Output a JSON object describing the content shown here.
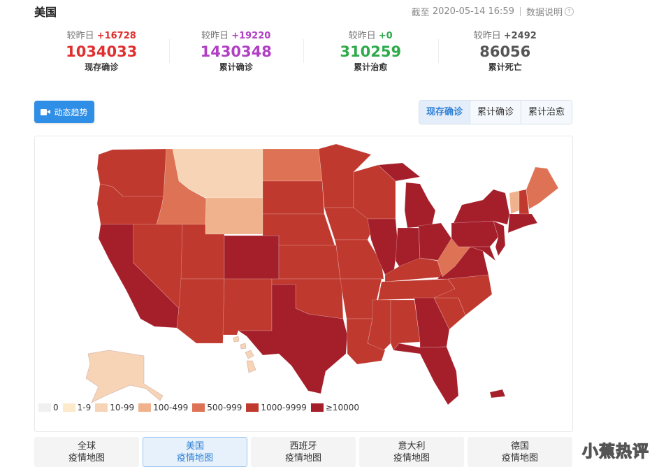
{
  "header": {
    "title": "美国",
    "update_prefix": "截至",
    "update_time": "2020-05-14 16:59",
    "data_note": "数据说明",
    "help_icon": "?"
  },
  "stats": [
    {
      "delta_label": "较昨日",
      "delta": "+16728",
      "value": "1034033",
      "label": "现存确诊",
      "color": "#e02f2f"
    },
    {
      "delta_label": "较昨日",
      "delta": "+19220",
      "value": "1430348",
      "label": "累计确诊",
      "color": "#b03fc4"
    },
    {
      "delta_label": "较昨日",
      "delta": "+0",
      "value": "310259",
      "label": "累计治愈",
      "color": "#2eaa4b"
    },
    {
      "delta_label": "较昨日",
      "delta": "+2492",
      "value": "86056",
      "label": "累计死亡",
      "color": "#555555"
    }
  ],
  "trend_button": "动态趋势",
  "view_toggle": [
    "现存确诊",
    "累计确诊",
    "累计治愈"
  ],
  "legend": [
    {
      "label": "0",
      "color": "#f0f0f0"
    },
    {
      "label": "1-9",
      "color": "#fde9cc"
    },
    {
      "label": "10-99",
      "color": "#f7d4b5"
    },
    {
      "label": "100-499",
      "color": "#efb28d"
    },
    {
      "label": "500-999",
      "color": "#de7254"
    },
    {
      "label": "1000-9999",
      "color": "#c0392f"
    },
    {
      "label": "≥10000",
      "color": "#a51f2b"
    }
  ],
  "country_tabs": [
    {
      "name": "全球",
      "sub": "疫情地图"
    },
    {
      "name": "美国",
      "sub": "疫情地图"
    },
    {
      "name": "西班牙",
      "sub": "疫情地图"
    },
    {
      "name": "意大利",
      "sub": "疫情地图"
    },
    {
      "name": "德国",
      "sub": "疫情地图"
    }
  ],
  "watermark": "小蕉热评"
}
